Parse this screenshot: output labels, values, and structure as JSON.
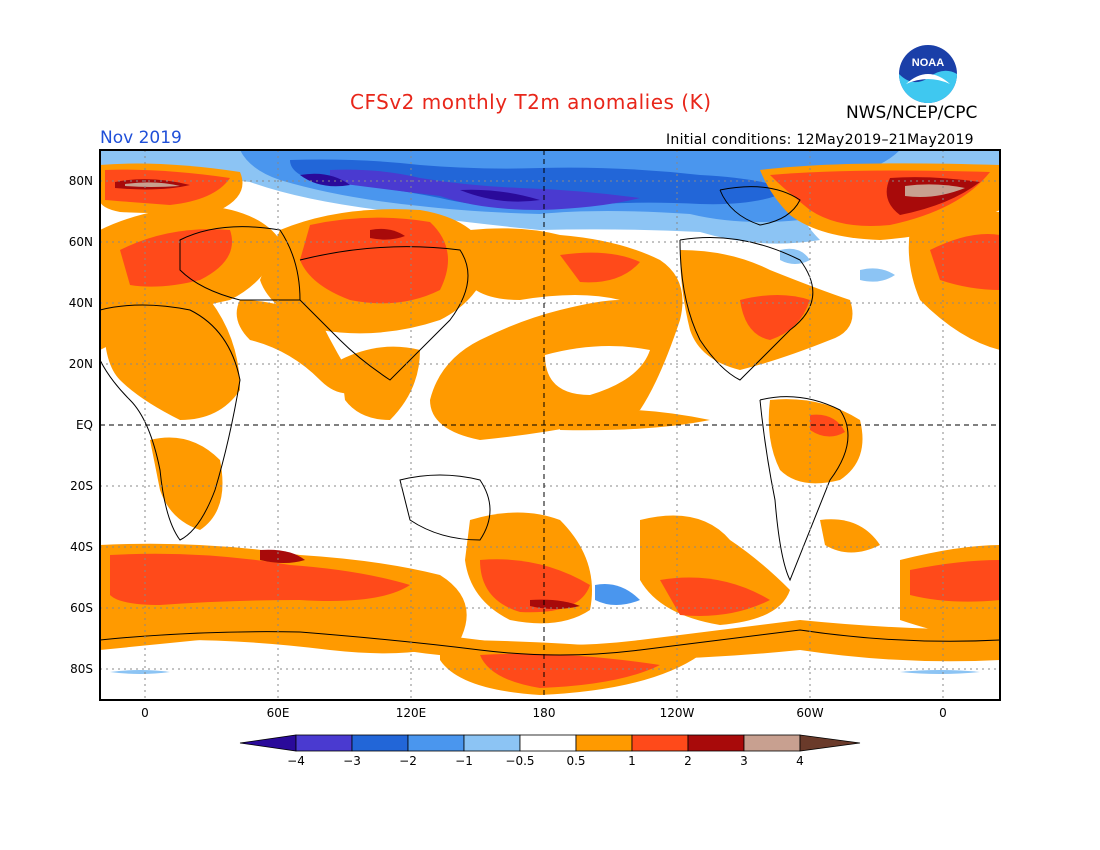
{
  "header": {
    "title": "CFSv2 monthly T2m anomalies (K)",
    "agency": "NWS/NCEP/CPC",
    "month": "Nov 2019",
    "initial_conditions": "Initial conditions: 12May2019–21May2019",
    "logo_text": "NOAA"
  },
  "map": {
    "lat_labels": [
      "80N",
      "60N",
      "40N",
      "20N",
      "EQ",
      "20S",
      "40S",
      "60S",
      "80S"
    ],
    "lon_labels": [
      "0",
      "60E",
      "120E",
      "180",
      "120W",
      "60W",
      "0"
    ]
  },
  "colorbar": {
    "tick_labels": [
      "−4",
      "−3",
      "−2",
      "−1",
      "−0.5",
      "0.5",
      "1",
      "2",
      "3",
      "4"
    ],
    "colors": [
      "#2a0a9a",
      "#4a3ad0",
      "#2266d8",
      "#4a96ee",
      "#8cc4f4",
      "#ffffff",
      "#ff9a00",
      "#ff4a1a",
      "#a80a0a",
      "#c8a090",
      "#6a3a2a"
    ]
  }
}
